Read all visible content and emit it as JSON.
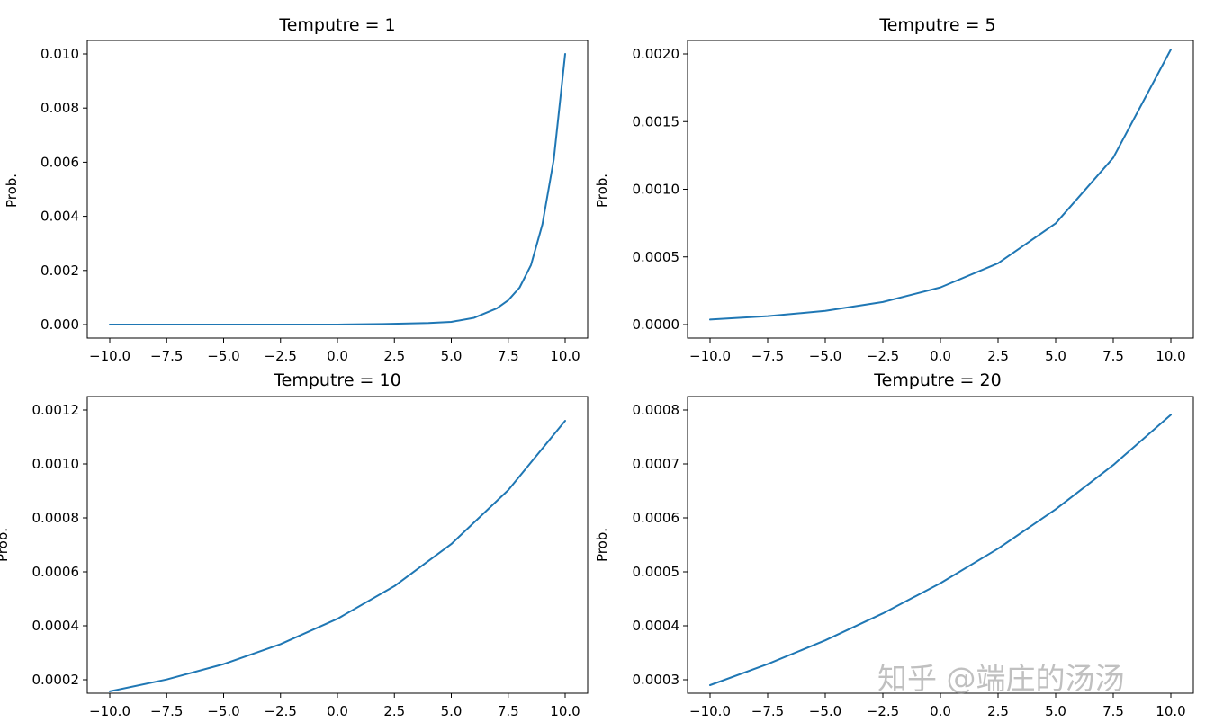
{
  "watermark": "知乎 @端庄的汤汤",
  "chart_data": [
    {
      "type": "line",
      "title": "Temputre = 1",
      "xlabel": "",
      "ylabel": "Prob.",
      "xlim": [
        -10.0,
        10.0
      ],
      "ylim": [
        0.0,
        0.01
      ],
      "grid": false,
      "legend": "none",
      "xticks": [
        "−10.0",
        "−7.5",
        "−5.0",
        "−2.5",
        "0.0",
        "2.5",
        "5.0",
        "7.5",
        "10.0"
      ],
      "yticks": [
        "0.000",
        "0.002",
        "0.004",
        "0.006",
        "0.008",
        "0.010"
      ],
      "series_color": "#1f77b4",
      "x": [
        -10,
        -8,
        -6,
        -4,
        -2,
        0,
        2,
        4,
        5,
        6,
        7,
        7.5,
        8,
        8.5,
        9,
        9.5,
        10
      ],
      "y": [
        0.0,
        0.0,
        0.0,
        0.0,
        0.0,
        0.0,
        2e-05,
        6e-05,
        0.0001,
        0.00025,
        0.0006,
        0.0009,
        0.00137,
        0.0022,
        0.0037,
        0.0061,
        0.01
      ]
    },
    {
      "type": "line",
      "title": "Temputre = 5",
      "xlabel": "",
      "ylabel": "Prob.",
      "xlim": [
        -10.0,
        10.0
      ],
      "ylim": [
        0.0,
        0.002
      ],
      "grid": false,
      "legend": "none",
      "xticks": [
        "−10.0",
        "−7.5",
        "−5.0",
        "−2.5",
        "0.0",
        "2.5",
        "5.0",
        "7.5",
        "10.0"
      ],
      "yticks": [
        "0.0000",
        "0.0005",
        "0.0010",
        "0.0015",
        "0.0020"
      ],
      "series_color": "#1f77b4",
      "x": [
        -10,
        -7.5,
        -5,
        -2.5,
        0,
        2.5,
        5,
        7.5,
        10
      ],
      "y": [
        3.7e-05,
        6.2e-05,
        0.000101,
        0.000167,
        0.000275,
        0.000453,
        0.000748,
        0.001233,
        0.002033
      ]
    },
    {
      "type": "line",
      "title": "Temputre = 10",
      "xlabel": "",
      "ylabel": "Prob.",
      "xlim": [
        -10.0,
        10.0
      ],
      "ylim": [
        0.0002,
        0.0012
      ],
      "grid": false,
      "legend": "none",
      "xticks": [
        "−10.0",
        "−7.5",
        "−5.0",
        "−2.5",
        "0.0",
        "2.5",
        "5.0",
        "7.5",
        "10.0"
      ],
      "yticks": [
        "0.0002",
        "0.0004",
        "0.0006",
        "0.0008",
        "0.0010",
        "0.0012"
      ],
      "series_color": "#1f77b4",
      "x": [
        -10,
        -7.5,
        -5,
        -2.5,
        0,
        2.5,
        5,
        7.5,
        10
      ],
      "y": [
        0.000157,
        0.000201,
        0.000258,
        0.000332,
        0.000426,
        0.000547,
        0.000703,
        0.000903,
        0.00116
      ]
    },
    {
      "type": "line",
      "title": "Temputre = 20",
      "xlabel": "",
      "ylabel": "Prob.",
      "xlim": [
        -10.0,
        10.0
      ],
      "ylim": [
        0.0003,
        0.0008
      ],
      "grid": false,
      "legend": "none",
      "xticks": [
        "−10.0",
        "−7.5",
        "−5.0",
        "−2.5",
        "0.0",
        "2.5",
        "5.0",
        "7.5",
        "10.0"
      ],
      "yticks": [
        "0.0003",
        "0.0004",
        "0.0005",
        "0.0006",
        "0.0007",
        "0.0008"
      ],
      "series_color": "#1f77b4",
      "x": [
        -10,
        -7.5,
        -5,
        -2.5,
        0,
        2.5,
        5,
        7.5,
        10
      ],
      "y": [
        0.00029,
        0.000329,
        0.000373,
        0.000423,
        0.000479,
        0.000543,
        0.000616,
        0.000698,
        0.000791
      ]
    }
  ]
}
